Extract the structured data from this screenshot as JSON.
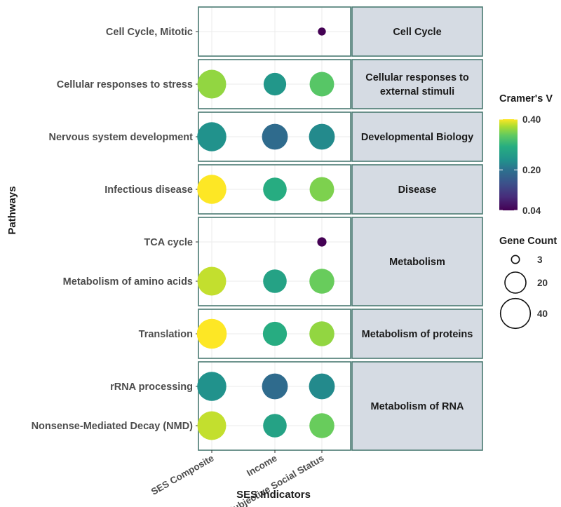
{
  "chart_data": {
    "type": "scatter",
    "subtype": "faceted dot plot",
    "xlabel": "SES Indicators",
    "ylabel": "Pathways",
    "x_categories": [
      "SES Composite",
      "Income",
      "Subjective Social Status"
    ],
    "panels": [
      {
        "group": "Cell Cycle",
        "rows": [
          "Cell Cycle, Mitotic"
        ]
      },
      {
        "group": "Cellular responses to external stimuli",
        "rows": [
          "Cellular responses to stress"
        ]
      },
      {
        "group": "Developmental Biology",
        "rows": [
          "Nervous system development"
        ]
      },
      {
        "group": "Disease",
        "rows": [
          "Infectious disease"
        ]
      },
      {
        "group": "Metabolism",
        "rows": [
          "TCA cycle",
          "Metabolism of amino acids"
        ]
      },
      {
        "group": "Metabolism of proteins",
        "rows": [
          "Translation"
        ]
      },
      {
        "group": "Metabolism of RNA",
        "rows": [
          "rRNA processing",
          "Nonsense-Mediated Decay (NMD)"
        ]
      }
    ],
    "points": [
      {
        "pathway": "Cell Cycle, Mitotic",
        "indicator": "Subjective Social Status",
        "cramers_v": 0.04,
        "gene_count": 3
      },
      {
        "pathway": "Cellular responses to stress",
        "indicator": "SES Composite",
        "cramers_v": 0.36,
        "gene_count": 37
      },
      {
        "pathway": "Cellular responses to stress",
        "indicator": "Income",
        "cramers_v": 0.25,
        "gene_count": 23
      },
      {
        "pathway": "Cellular responses to stress",
        "indicator": "Subjective Social Status",
        "cramers_v": 0.33,
        "gene_count": 27
      },
      {
        "pathway": "Nervous system development",
        "indicator": "SES Composite",
        "cramers_v": 0.24,
        "gene_count": 38
      },
      {
        "pathway": "Nervous system development",
        "indicator": "Income",
        "cramers_v": 0.19,
        "gene_count": 30
      },
      {
        "pathway": "Nervous system development",
        "indicator": "Subjective Social Status",
        "cramers_v": 0.23,
        "gene_count": 30
      },
      {
        "pathway": "Infectious disease",
        "indicator": "SES Composite",
        "cramers_v": 0.4,
        "gene_count": 38
      },
      {
        "pathway": "Infectious disease",
        "indicator": "Income",
        "cramers_v": 0.29,
        "gene_count": 25
      },
      {
        "pathway": "Infectious disease",
        "indicator": "Subjective Social Status",
        "cramers_v": 0.35,
        "gene_count": 27
      },
      {
        "pathway": "TCA cycle",
        "indicator": "Subjective Social Status",
        "cramers_v": 0.04,
        "gene_count": 4
      },
      {
        "pathway": "Metabolism of amino acids",
        "indicator": "SES Composite",
        "cramers_v": 0.38,
        "gene_count": 37
      },
      {
        "pathway": "Metabolism of amino acids",
        "indicator": "Income",
        "cramers_v": 0.27,
        "gene_count": 25
      },
      {
        "pathway": "Metabolism of amino acids",
        "indicator": "Subjective Social Status",
        "cramers_v": 0.34,
        "gene_count": 28
      },
      {
        "pathway": "Translation",
        "indicator": "SES Composite",
        "cramers_v": 0.4,
        "gene_count": 40
      },
      {
        "pathway": "Translation",
        "indicator": "Income",
        "cramers_v": 0.29,
        "gene_count": 26
      },
      {
        "pathway": "Translation",
        "indicator": "Subjective Social Status",
        "cramers_v": 0.36,
        "gene_count": 28
      },
      {
        "pathway": "rRNA processing",
        "indicator": "SES Composite",
        "cramers_v": 0.24,
        "gene_count": 38
      },
      {
        "pathway": "rRNA processing",
        "indicator": "Income",
        "cramers_v": 0.19,
        "gene_count": 30
      },
      {
        "pathway": "rRNA processing",
        "indicator": "Subjective Social Status",
        "cramers_v": 0.23,
        "gene_count": 30
      },
      {
        "pathway": "Nonsense-Mediated Decay (NMD)",
        "indicator": "SES Composite",
        "cramers_v": 0.38,
        "gene_count": 37
      },
      {
        "pathway": "Nonsense-Mediated Decay (NMD)",
        "indicator": "Income",
        "cramers_v": 0.27,
        "gene_count": 25
      },
      {
        "pathway": "Nonsense-Mediated Decay (NMD)",
        "indicator": "Subjective Social Status",
        "cramers_v": 0.34,
        "gene_count": 28
      }
    ],
    "color_legend": {
      "title": "Cramer's V",
      "ticks": [
        "0.40",
        "0.20",
        "0.04"
      ],
      "range": [
        0.04,
        0.4
      ],
      "palette": "viridis"
    },
    "size_legend": {
      "title": "Gene Count",
      "values": [
        3,
        20,
        40
      ]
    },
    "strip_background": "#d5dbe3",
    "border_color": "#4a7a72",
    "grid": true
  }
}
